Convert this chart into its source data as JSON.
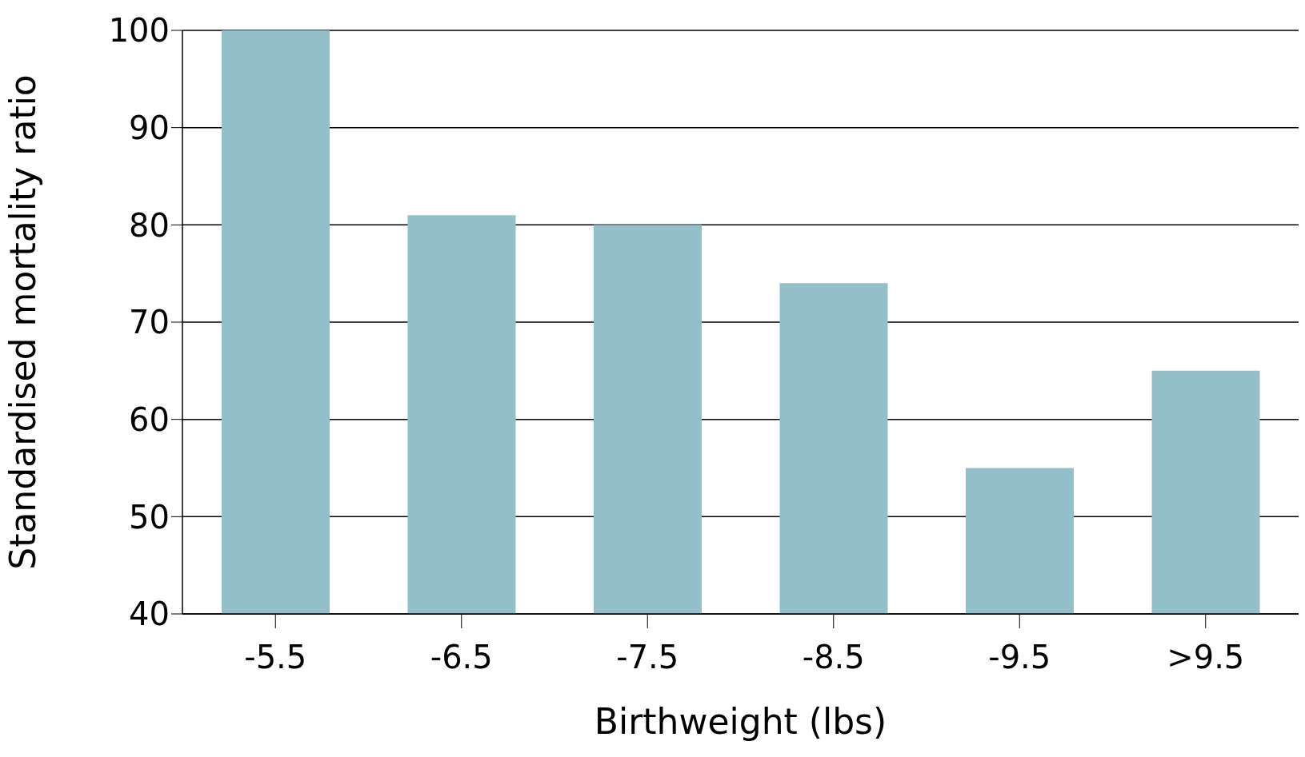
{
  "chart_data": {
    "type": "bar",
    "xlabel": "Birthweight (lbs)",
    "ylabel": "Standardised mortality ratio",
    "categories": [
      "-5.5",
      "-6.5",
      "-7.5",
      "-8.5",
      "-9.5",
      ">9.5"
    ],
    "values": [
      100,
      81,
      80,
      74,
      55,
      65
    ],
    "color": "#93bfcb",
    "ylim": [
      40,
      100
    ],
    "yticks": [
      40,
      50,
      60,
      70,
      80,
      90,
      100
    ],
    "grid": "y"
  }
}
